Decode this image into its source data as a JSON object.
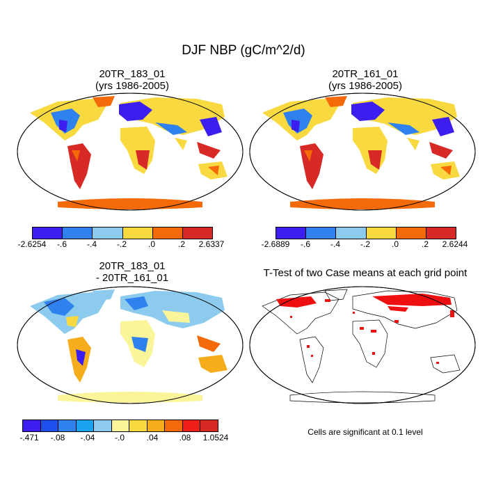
{
  "title": "DJF NBP (gC/m^2/d)",
  "panels": [
    {
      "title_lines": [
        "20TR_183_01",
        "(yrs 1986-2005)"
      ],
      "colorbar": {
        "colors": [
          "#3d1ef0",
          "#2f82ee",
          "#8ccbee",
          "#f8da40",
          "#f56a08",
          "#d72a26"
        ],
        "labels": [
          "-2.6254",
          "-.6",
          "-.4",
          "-.2",
          ".0",
          ".2",
          "2.6337"
        ]
      }
    },
    {
      "title_lines": [
        "20TR_161_01",
        "(yrs 1986-2005)"
      ],
      "colorbar": {
        "colors": [
          "#3d1ef0",
          "#2f82ee",
          "#8ccbee",
          "#f8da40",
          "#f56a08",
          "#d72a26"
        ],
        "labels": [
          "-2.6889",
          "-.6",
          "-.4",
          "-.2",
          ".0",
          ".2",
          "2.6244"
        ]
      }
    },
    {
      "title_lines": [
        "20TR_183_01",
        "- 20TR_161_01"
      ],
      "colorbar": {
        "colors": [
          "#3d1ef0",
          "#1f50ee",
          "#2f82ee",
          "#1aa2ee",
          "#8ccbee",
          "#fbf59a",
          "#f8da40",
          "#f6ad1c",
          "#f56a08",
          "#ee1e18",
          "#d72a26"
        ],
        "labels": [
          "-.471",
          "-.08",
          "-.04",
          "-.0",
          ".04",
          ".08",
          "1.0524"
        ]
      }
    },
    {
      "title_lines": [
        "T-Test of two Case means at each grid point"
      ],
      "note": "Cells are significant at 0.1 level"
    }
  ]
}
